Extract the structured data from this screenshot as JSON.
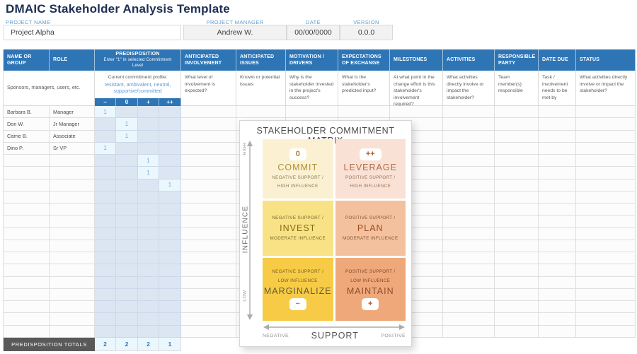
{
  "page_title": "DMAIC Stakeholder Analysis Template",
  "meta": {
    "fields": [
      {
        "label": "PROJECT NAME",
        "value": "Project Alpha"
      },
      {
        "label": "PROJECT MANAGER",
        "value": "Andrew W."
      },
      {
        "label": "DATE",
        "value": "00/00/0000"
      },
      {
        "label": "VERSION",
        "value": "0.0.0"
      }
    ]
  },
  "table": {
    "columns": [
      {
        "title": "NAME OR GROUP",
        "desc": ""
      },
      {
        "title": "ROLE",
        "desc": ""
      },
      {
        "title": "ANTICIPATED INVOLVEMENT",
        "desc": "What level of involvement is expected?"
      },
      {
        "title": "ANTICIPATED ISSUES",
        "desc": "Known or potential issues"
      },
      {
        "title": "MOTIVATION / DRIVERS",
        "desc": "Why is the stakeholder invested in the project's success?"
      },
      {
        "title": "EXPECTATIONS OF EXCHANGE",
        "desc": "What is the stakeholder's predicted input?"
      },
      {
        "title": "MILESTONES",
        "desc": "At what point in the change effort is this stakeholder's involvement required?"
      },
      {
        "title": "ACTIVITIES",
        "desc": "What activities directly involve or impact the stakeholder?"
      },
      {
        "title": "RESPONSIBLE PARTY",
        "desc": "Team member(s) responsible"
      },
      {
        "title": "DATE DUE",
        "desc": "Task / involvement needs to be met by"
      },
      {
        "title": "STATUS",
        "desc": "What activities directly involve or impact the stakeholder?"
      }
    ],
    "group_desc": "Sponsors, managers, users, etc.",
    "predisposition": {
      "title": "PREDISPOSITION",
      "subtitle": "Enter \"1\" in selected Commitment Level",
      "profile_label": "Current commitment profile:",
      "profile_values": "resistant, ambivalent, neutral, supportive/committed",
      "levels": [
        "−",
        "0",
        "+",
        "++"
      ]
    },
    "rows": [
      {
        "name": "Barbara B.",
        "role": "Manager",
        "marks": [
          "1",
          "",
          "",
          ""
        ]
      },
      {
        "name": "Don W.",
        "role": "Jr Manager",
        "marks": [
          "",
          "1",
          "",
          ""
        ]
      },
      {
        "name": "Carrie B.",
        "role": "Associate",
        "marks": [
          "",
          "1",
          "",
          ""
        ]
      },
      {
        "name": "Dino P.",
        "role": "Sr VP",
        "marks": [
          "1",
          "",
          "",
          ""
        ]
      },
      {
        "name": "",
        "role": "",
        "marks": [
          "",
          "",
          "1",
          ""
        ]
      },
      {
        "name": "",
        "role": "",
        "marks": [
          "",
          "",
          "1",
          ""
        ]
      },
      {
        "name": "",
        "role": "",
        "marks": [
          "",
          "",
          "",
          "1"
        ]
      },
      {
        "name": "",
        "role": "",
        "marks": [
          "",
          "",
          "",
          ""
        ]
      },
      {
        "name": "",
        "role": "",
        "marks": [
          "",
          "",
          "",
          ""
        ]
      },
      {
        "name": "",
        "role": "",
        "marks": [
          "",
          "",
          "",
          ""
        ]
      },
      {
        "name": "",
        "role": "",
        "marks": [
          "",
          "",
          "",
          ""
        ]
      },
      {
        "name": "",
        "role": "",
        "marks": [
          "",
          "",
          "",
          ""
        ]
      },
      {
        "name": "",
        "role": "",
        "marks": [
          "",
          "",
          "",
          ""
        ]
      },
      {
        "name": "",
        "role": "",
        "marks": [
          "",
          "",
          "",
          ""
        ]
      },
      {
        "name": "",
        "role": "",
        "marks": [
          "",
          "",
          "",
          ""
        ]
      },
      {
        "name": "",
        "role": "",
        "marks": [
          "",
          "",
          "",
          ""
        ]
      },
      {
        "name": "",
        "role": "",
        "marks": [
          "",
          "",
          "",
          ""
        ]
      },
      {
        "name": "",
        "role": "",
        "marks": [
          "",
          "",
          "",
          ""
        ]
      },
      {
        "name": "",
        "role": "",
        "marks": [
          "",
          "",
          "",
          ""
        ]
      }
    ],
    "totals_label": "PREDISPOSITION TOTALS",
    "totals": [
      "2",
      "2",
      "2",
      "1"
    ]
  },
  "matrix": {
    "title": "STAKEHOLDER COMMITMENT MATRIX",
    "y_axis": {
      "label": "INFLUENCE",
      "top": "HIGH",
      "bottom": "LOW"
    },
    "x_axis": {
      "label": "SUPPORT",
      "left": "NEGATIVE",
      "right": "POSITIVE"
    },
    "quadrants": [
      {
        "name": "commit",
        "badge": "0",
        "badge_pos": "top",
        "label": "COMMIT",
        "small_top": [],
        "small_bottom": [
          "NEGATIVE SUPPORT /",
          "HIGH INFLUENCE"
        ],
        "bg": "#FBF1D2",
        "label_color": "#B08F35",
        "small_color": "#8A7A50",
        "badge_color": "#A9842E"
      },
      {
        "name": "leverage",
        "badge": "++",
        "badge_pos": "top",
        "label": "LEVERAGE",
        "small_top": [],
        "small_bottom": [
          "POSITIVE SUPPORT /",
          "HIGH INFLUENCE"
        ],
        "bg": "#FAE1D5",
        "label_color": "#B26B44",
        "small_color": "#9B7258",
        "badge_color": "#A8592F"
      },
      {
        "name": "invest",
        "badge": "",
        "badge_pos": "",
        "label": "INVEST",
        "small_top": [
          "NEGATIVE SUPPORT /"
        ],
        "small_bottom": [
          "MODERATE INFLUENCE"
        ],
        "bg": "#F9E285",
        "label_color": "#83691A",
        "small_color": "#77682E",
        "badge_color": ""
      },
      {
        "name": "plan",
        "badge": "",
        "badge_pos": "",
        "label": "PLAN",
        "small_top": [
          "POSITIVE SUPPORT /"
        ],
        "small_bottom": [
          "MODERATE INFLUENCE"
        ],
        "bg": "#F4C19E",
        "label_color": "#9D4F20",
        "small_color": "#855636",
        "badge_color": ""
      },
      {
        "name": "marginalize",
        "badge": "−",
        "badge_pos": "bottom",
        "label": "MARGINALIZE",
        "small_top": [
          "NEGATIVE SUPPORT /",
          "LOW INFLUENCE"
        ],
        "small_bottom": [],
        "bg": "#F7CB45",
        "label_color": "#665B35",
        "small_color": "#6F6128",
        "badge_color": "#B08F35"
      },
      {
        "name": "maintain",
        "badge": "+",
        "badge_pos": "bottom",
        "label": "MAINTAIN",
        "small_top": [
          "POSITIVE SUPPORT /",
          "LOW INFLUENCE"
        ],
        "small_bottom": [],
        "bg": "#EFA87A",
        "label_color": "#8F4E28",
        "small_color": "#7C4827",
        "badge_color": "#A8592F"
      }
    ]
  },
  "colors": {
    "header_blue": "#2E75B6",
    "accent_blue": "#5B9BD5",
    "pred_cell": "#DCE6F2",
    "pred_marked": "#EAF7FD",
    "totals_dark": "#595959",
    "title_navy": "#1E2F54"
  }
}
